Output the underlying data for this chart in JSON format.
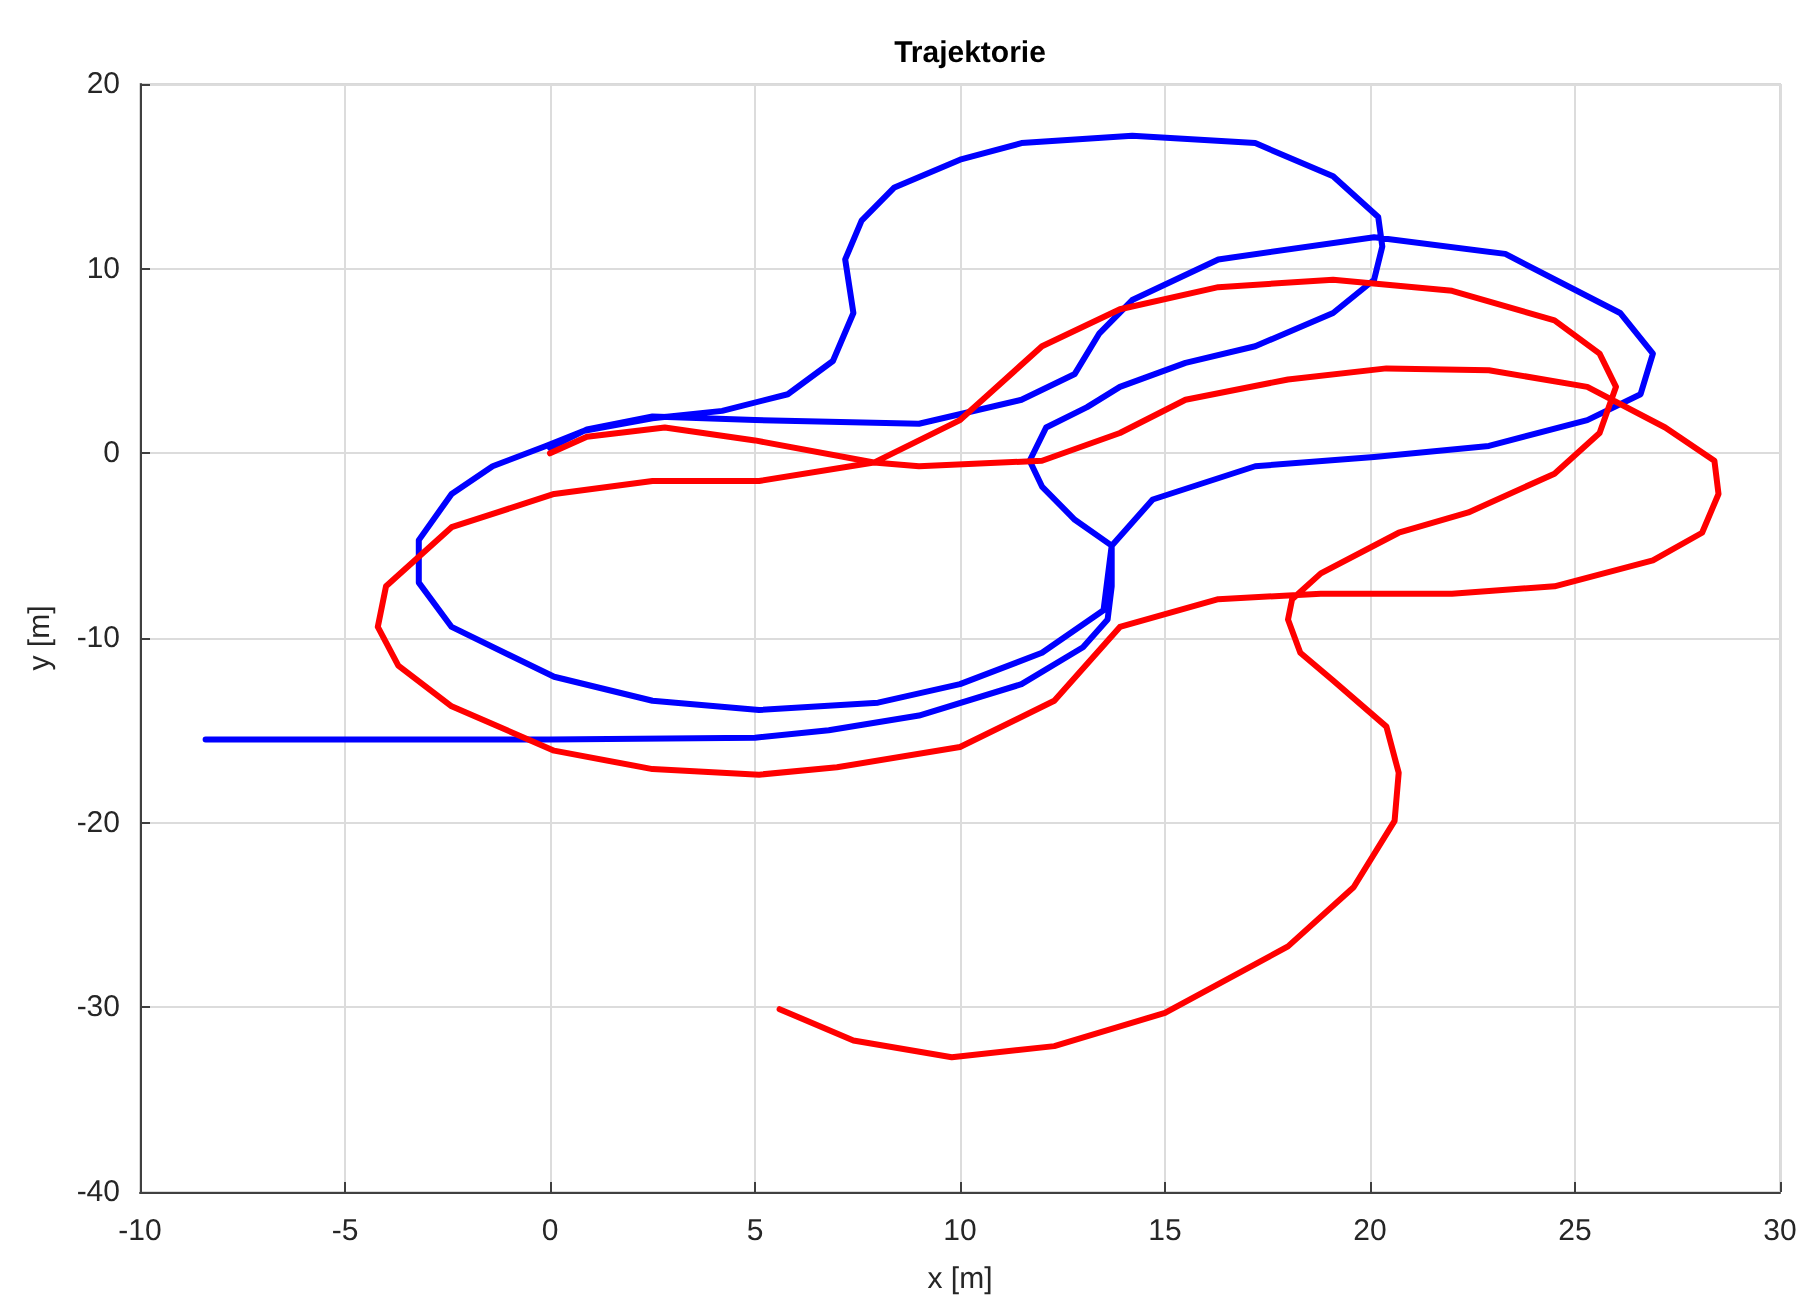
{
  "chart_data": {
    "type": "line",
    "title": "Trajektorie",
    "xlabel": "x [m]",
    "ylabel": "y [m]",
    "xlim": [
      -10,
      30
    ],
    "xticks": [
      -10,
      -5,
      0,
      5,
      10,
      15,
      20,
      25,
      30
    ],
    "ylim": [
      -40,
      20
    ],
    "yticks": [
      -40,
      -30,
      -20,
      -10,
      0,
      10,
      20
    ],
    "grid": true,
    "marker": "none",
    "line_style": "solid",
    "series": [
      {
        "color": "#0000ff",
        "x": [
          -8.4,
          -4,
          0,
          5,
          6.8,
          9,
          11.5,
          13,
          13.6,
          13.7,
          13.7,
          12.8,
          12,
          11.7,
          12.1,
          13.1,
          13.9,
          15.5,
          17.2,
          19.1,
          20.1,
          20.3,
          20.2,
          19.1,
          17.2,
          14.2,
          11.5,
          10,
          8.4,
          7.6,
          7.2,
          7.4,
          6.9,
          5.8,
          4.2,
          2.5,
          0.8,
          -0.1,
          -1.4,
          -2.4,
          -3.2,
          -3.2,
          -2.4,
          0.1,
          2.5,
          5.1,
          8,
          10,
          12,
          13.5,
          13.7,
          14.7,
          17.2,
          20.1,
          22.9,
          25.3,
          26.6,
          26.9,
          26.1,
          23.3,
          20.1,
          16.3,
          14.2,
          13.4,
          12.8,
          11.5,
          9,
          5,
          2.5,
          0.9,
          0
        ],
        "values": [
          -15.5,
          -15.5,
          -15.5,
          -15.4,
          -15,
          -14.2,
          -12.5,
          -10.5,
          -9,
          -7.2,
          -5,
          -3.6,
          -1.8,
          -0.4,
          1.4,
          2.5,
          3.6,
          4.9,
          5.8,
          7.6,
          9.4,
          11.2,
          12.8,
          15,
          16.8,
          17.2,
          16.8,
          15.9,
          14.4,
          12.6,
          10.5,
          7.6,
          5,
          3.2,
          2.3,
          1.9,
          1.2,
          0.4,
          -0.7,
          -2.2,
          -4.7,
          -7,
          -9.4,
          -12.1,
          -13.4,
          -13.9,
          -13.5,
          -12.5,
          -10.8,
          -8.5,
          -5,
          -2.5,
          -0.7,
          -0.2,
          0.4,
          1.8,
          3.2,
          5.4,
          7.6,
          10.8,
          11.7,
          10.5,
          8.3,
          6.5,
          4.3,
          2.9,
          1.6,
          1.8,
          2,
          1.3,
          0.3
        ]
      },
      {
        "color": "#ff0000",
        "x": [
          5.6,
          7.4,
          9.8,
          12.3,
          15,
          18,
          19.6,
          20.6,
          20.7,
          20.4,
          19.1,
          18.3,
          18,
          18.1,
          18.8,
          20.7,
          22.4,
          24.5,
          25.6,
          26,
          25.6,
          24.5,
          22,
          19.1,
          16.3,
          13.9,
          12,
          10.7,
          10,
          7.9,
          5.1,
          2.5,
          0.1,
          -2.4,
          -4,
          -4.2,
          -3.7,
          -2.4,
          0.1,
          2.5,
          5.1,
          7,
          10,
          12.3,
          13.9,
          16.3,
          18.8,
          22,
          24.5,
          26.9,
          28.1,
          28.5,
          28.4,
          27.2,
          25.3,
          22.9,
          20.4,
          18,
          15.5,
          13.9,
          12,
          9,
          7.9,
          5,
          2.8,
          0.9,
          0
        ],
        "values": [
          -30.1,
          -31.8,
          -32.7,
          -32.1,
          -30.3,
          -26.7,
          -23.5,
          -19.9,
          -17.3,
          -14.8,
          -12.3,
          -10.8,
          -9,
          -7.9,
          -6.5,
          -4.3,
          -3.2,
          -1.1,
          1.1,
          3.6,
          5.4,
          7.2,
          8.8,
          9.4,
          9,
          7.8,
          5.8,
          3.2,
          1.8,
          -0.5,
          -1.5,
          -1.5,
          -2.2,
          -4,
          -7.2,
          -9.4,
          -11.5,
          -13.7,
          -16.1,
          -17.1,
          -17.4,
          -17,
          -15.9,
          -13.4,
          -9.4,
          -7.9,
          -7.6,
          -7.6,
          -7.2,
          -5.8,
          -4.3,
          -2.2,
          -0.4,
          1.4,
          3.6,
          4.5,
          4.6,
          4,
          2.9,
          1.1,
          -0.4,
          -0.7,
          -0.5,
          0.7,
          1.4,
          0.9,
          0
        ]
      }
    ]
  }
}
